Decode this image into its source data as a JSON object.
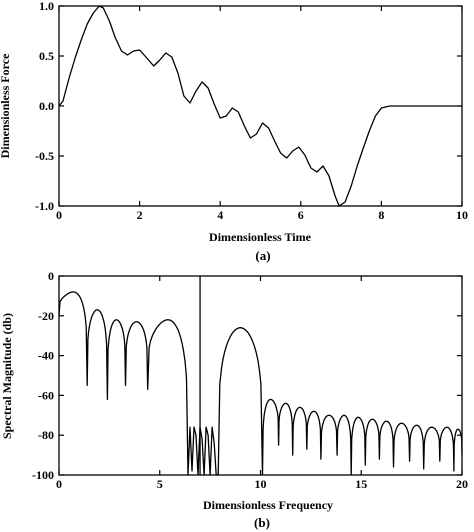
{
  "chart_data": [
    {
      "type": "line",
      "title": "",
      "xlabel": "Dimensionless Time",
      "ylabel": "Dimensionless Force",
      "caption": "(a)",
      "xlim": [
        0,
        10
      ],
      "ylim": [
        -1.0,
        1.0
      ],
      "xticks": [
        "0",
        "2",
        "4",
        "6",
        "8",
        "10"
      ],
      "yticks": [
        "1.0",
        "0.5",
        "0.0",
        "-0.5",
        "-1.0"
      ],
      "grid": false,
      "series": [
        {
          "x": [
            0,
            0.1,
            0.25,
            0.4,
            0.55,
            0.7,
            0.85,
            1.0,
            1.1,
            1.25,
            1.4,
            1.55,
            1.7,
            1.85,
            2.0,
            2.2,
            2.35,
            2.5,
            2.65,
            2.8,
            2.95,
            3.1,
            3.25,
            3.4,
            3.55,
            3.7,
            3.85,
            4.0,
            4.15,
            4.3,
            4.45,
            4.6,
            4.75,
            4.9,
            5.05,
            5.2,
            5.35,
            5.5,
            5.65,
            5.8,
            5.95,
            6.1,
            6.25,
            6.4,
            6.55,
            6.7,
            6.85,
            6.95,
            7.1,
            7.25,
            7.4,
            7.55,
            7.7,
            7.85,
            8.0,
            8.2,
            8.5,
            9.0,
            9.5,
            10.0
          ],
          "y": [
            0.0,
            0.05,
            0.28,
            0.48,
            0.66,
            0.82,
            0.93,
            1.0,
            0.98,
            0.85,
            0.68,
            0.55,
            0.51,
            0.55,
            0.56,
            0.47,
            0.4,
            0.46,
            0.53,
            0.49,
            0.33,
            0.1,
            0.03,
            0.15,
            0.24,
            0.18,
            0.02,
            -0.12,
            -0.1,
            -0.02,
            -0.06,
            -0.2,
            -0.32,
            -0.28,
            -0.17,
            -0.22,
            -0.35,
            -0.47,
            -0.52,
            -0.45,
            -0.41,
            -0.49,
            -0.62,
            -0.66,
            -0.6,
            -0.7,
            -0.9,
            -1.0,
            -0.96,
            -0.8,
            -0.6,
            -0.42,
            -0.25,
            -0.1,
            -0.02,
            0.0,
            0.0,
            0.0,
            0.0,
            0.0
          ]
        }
      ]
    },
    {
      "type": "line",
      "title": "",
      "xlabel": "Dimensionless Frequency",
      "ylabel": "Spectral Magnitude (db)",
      "caption": "(b)",
      "xlim": [
        0,
        20
      ],
      "ylim": [
        -100,
        0
      ],
      "xticks": [
        "0",
        "5",
        "10",
        "15",
        "20"
      ],
      "yticks": [
        "0",
        "-20",
        "-40",
        "-60",
        "-80",
        "-100"
      ],
      "grid": false,
      "vertical_marker_x": 7.0,
      "lobes": [
        {
          "start": 0.0,
          "end": 1.4,
          "peak": -8,
          "startDb": -20,
          "endDb": -55
        },
        {
          "start": 1.4,
          "end": 2.4,
          "peak": -17,
          "startDb": -55,
          "endDb": -62
        },
        {
          "start": 2.4,
          "end": 3.3,
          "peak": -22,
          "startDb": -62,
          "endDb": -55
        },
        {
          "start": 3.3,
          "end": 4.4,
          "peak": -23,
          "startDb": -55,
          "endDb": -57
        },
        {
          "start": 4.4,
          "end": 6.4,
          "peak": -22,
          "startDb": -57,
          "endDb": -100
        },
        {
          "start": 7.9,
          "end": 10.1,
          "peak": -26,
          "startDb": -100,
          "endDb": -100
        },
        {
          "start": 10.1,
          "end": 10.9,
          "peak": -62,
          "startDb": -100,
          "endDb": -85
        },
        {
          "start": 10.9,
          "end": 11.6,
          "peak": -64,
          "startDb": -85,
          "endDb": -90
        },
        {
          "start": 11.6,
          "end": 12.3,
          "peak": -66,
          "startDb": -90,
          "endDb": -87
        },
        {
          "start": 12.3,
          "end": 13.0,
          "peak": -68,
          "startDb": -87,
          "endDb": -92
        },
        {
          "start": 13.0,
          "end": 13.8,
          "peak": -70,
          "startDb": -92,
          "endDb": -90
        },
        {
          "start": 13.8,
          "end": 14.5,
          "peak": -70,
          "startDb": -90,
          "endDb": -100
        },
        {
          "start": 14.5,
          "end": 15.2,
          "peak": -71,
          "startDb": -100,
          "endDb": -95
        },
        {
          "start": 15.2,
          "end": 15.9,
          "peak": -72,
          "startDb": -95,
          "endDb": -92
        },
        {
          "start": 15.9,
          "end": 16.6,
          "peak": -73,
          "startDb": -92,
          "endDb": -96
        },
        {
          "start": 16.6,
          "end": 17.4,
          "peak": -74,
          "startDb": -96,
          "endDb": -93
        },
        {
          "start": 17.4,
          "end": 18.1,
          "peak": -75,
          "startDb": -93,
          "endDb": -97
        },
        {
          "start": 18.1,
          "end": 18.9,
          "peak": -76,
          "startDb": -97,
          "endDb": -93
        },
        {
          "start": 18.9,
          "end": 19.6,
          "peak": -76,
          "startDb": -93,
          "endDb": -98
        },
        {
          "start": 19.6,
          "end": 20.0,
          "peak": -77,
          "startDb": -98,
          "endDb": -90
        }
      ],
      "noise_segment": {
        "x": [
          6.4,
          6.5,
          6.6,
          6.7,
          6.8,
          6.9,
          7.0,
          7.1,
          7.2,
          7.3,
          7.4,
          7.5,
          7.6,
          7.7,
          7.8,
          7.9
        ],
        "y": [
          -100,
          -76,
          -98,
          -76,
          -80,
          -100,
          -76,
          -82,
          -100,
          -76,
          -80,
          -100,
          -76,
          -84,
          -100,
          -100
        ]
      }
    }
  ]
}
